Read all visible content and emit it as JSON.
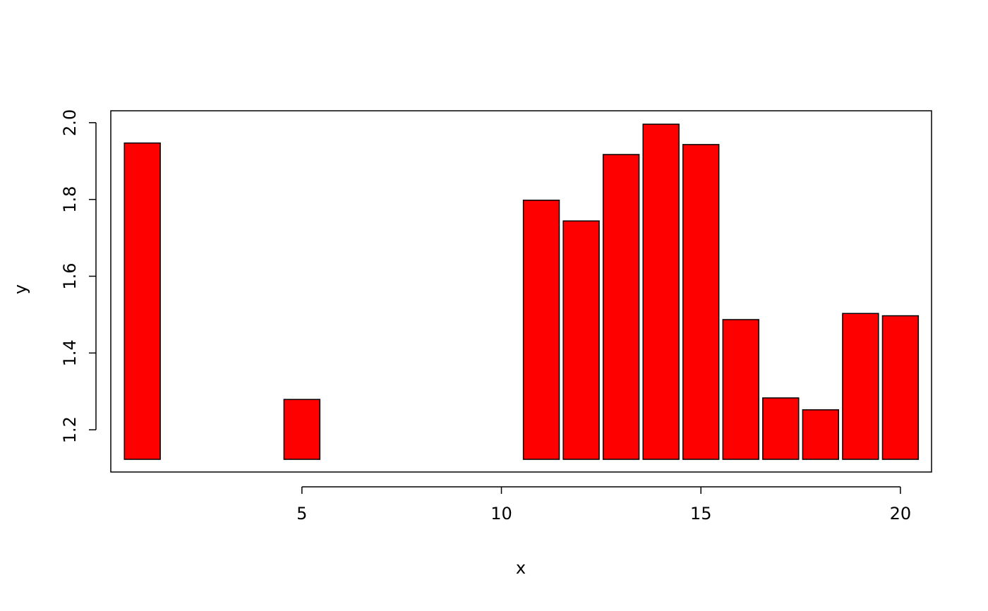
{
  "chart_data": {
    "type": "bar",
    "x_label": "x",
    "y_label": "y",
    "x": [
      1,
      5,
      10,
      11,
      12,
      13,
      14,
      15,
      16,
      17,
      18,
      19,
      20
    ],
    "values": [
      1.947,
      1.279,
      1.123,
      1.798,
      1.744,
      1.917,
      1.996,
      1.943,
      1.487,
      1.283,
      1.252,
      1.503,
      1.497
    ],
    "color": "#ff0000",
    "xlim": [
      0.21,
      20.78
    ],
    "ylim": [
      1.09,
      2.031
    ],
    "xticks": [
      5,
      10,
      15,
      20
    ],
    "yticks": [
      1.2,
      1.4,
      1.6,
      1.8,
      {
        "value": 2,
        "label": "2.0"
      }
    ],
    "grid": false
  }
}
